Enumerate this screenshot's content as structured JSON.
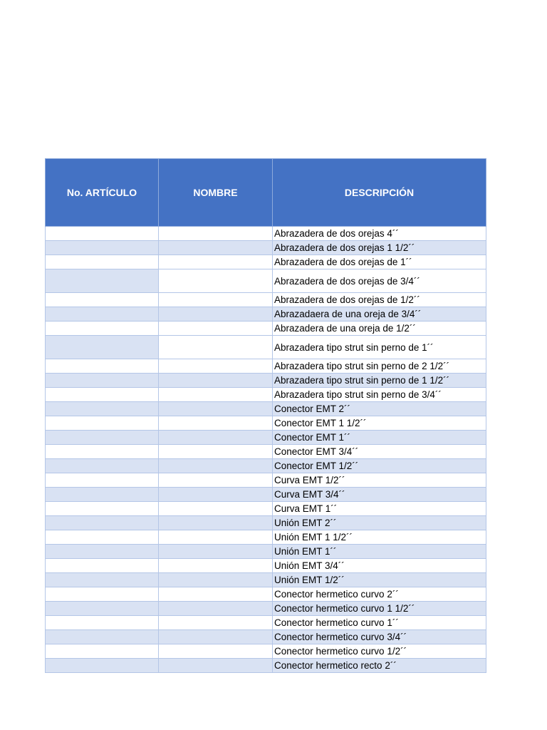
{
  "table": {
    "headers": [
      "No. ARTÍCULO",
      "NOMBRE",
      "DESCRIPCIÓN"
    ],
    "rows": [
      "Abrazadera de dos orejas 4´´",
      "Abrazadera de dos orejas 1 1/2´´",
      "Abrazadera de dos orejas de 1´´",
      "Abrazadera de dos orejas de 3/4´´",
      "Abrazadera de dos orejas de 1/2´´",
      "Abrazadaera de una oreja de 3/4´´",
      "Abrazadera de una oreja de 1/2´´",
      "Abrazadera tipo strut sin perno de 1´´",
      "Abrazadera tipo strut sin perno de 2 1/2´´",
      "Abrazadera tipo strut sin perno de 1 1/2´´",
      "Abrazadera tipo strut sin perno de 3/4´´",
      "Conector EMT 2´´",
      "Conector EMT 1 1/2´´",
      "Conector EMT 1´´",
      "Conector EMT 3/4´´",
      "Conector EMT 1/2´´",
      "Curva EMT 1/2´´",
      "Curva EMT 3/4´´",
      "Curva EMT 1´´",
      "Unión EMT 2´´",
      "Unión EMT 1 1/2´´",
      "Unión EMT 1´´",
      "Unión EMT 3/4´´",
      "Unión EMT 1/2´´",
      "Conector hermetico curvo 2´´",
      "Conector hermetico curvo 1 1/2´´",
      "Conector hermetico curvo 1´´",
      "Conector hermetico curvo 3/4´´",
      "Conector hermetico curvo 1/2´´",
      "Conector hermetico recto 2´´"
    ]
  },
  "colors": {
    "header_bg": "#4472c4",
    "band": "#d9e2f3"
  }
}
